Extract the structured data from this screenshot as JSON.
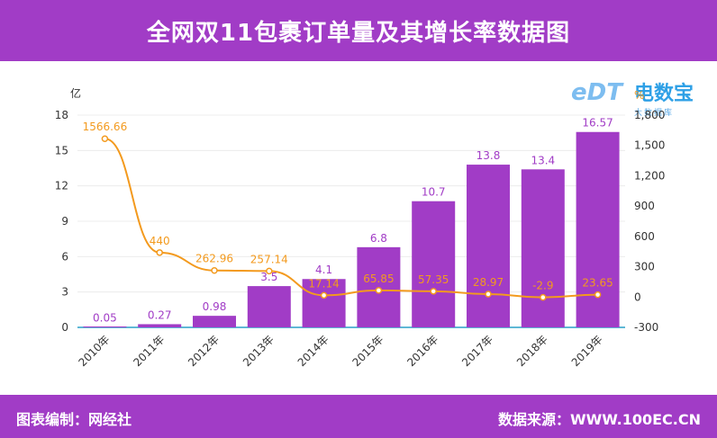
{
  "header": {
    "title": "全网双11包裹订单量及其增长率数据图"
  },
  "footer": {
    "left_text": "图表编制：网经社",
    "right_text": "数据来源：WWW.100EC.CN"
  },
  "logo": {
    "brand": "电数宝",
    "sub": "大数据库",
    "mark": "eDT"
  },
  "colors": {
    "header_bg": "#a13cc6",
    "bar": "#a13cc6",
    "line": "#f39a1e",
    "axis": "#2aa1c9"
  },
  "chart_data": {
    "type": "bar",
    "categories": [
      "2010年",
      "2011年",
      "2012年",
      "2013年",
      "2014年",
      "2015年",
      "2016年",
      "2017年",
      "2018年",
      "2019年"
    ],
    "series": [
      {
        "type": "bar",
        "axis": "left",
        "values": [
          0.05,
          0.27,
          0.98,
          3.5,
          4.1,
          6.8,
          10.7,
          13.8,
          13.4,
          16.57
        ]
      },
      {
        "type": "line",
        "axis": "right",
        "values": [
          1566.66,
          440,
          262.96,
          257.14,
          17.14,
          65.85,
          57.35,
          28.97,
          -2.9,
          23.65
        ]
      }
    ],
    "left_axis": {
      "unit": "亿",
      "ylim": [
        0,
        18
      ],
      "ticks": [
        "0",
        "3",
        "6",
        "9",
        "12",
        "15",
        "18"
      ]
    },
    "right_axis": {
      "unit": "%",
      "ylim": [
        -300,
        1800
      ],
      "ticks": [
        "-300",
        "0",
        "300",
        "600",
        "900",
        "1,200",
        "1,500",
        "1,800"
      ]
    },
    "bar_labels": [
      "0.05",
      "0.27",
      "0.98",
      "3.5",
      "4.1",
      "6.8",
      "10.7",
      "13.8",
      "13.4",
      "16.57"
    ],
    "line_labels": [
      "1566.66",
      "440",
      "262.96",
      "257.14",
      "17.14",
      "65.85",
      "57.35",
      "28.97",
      "-2.9",
      "23.65"
    ],
    "grid": true
  }
}
